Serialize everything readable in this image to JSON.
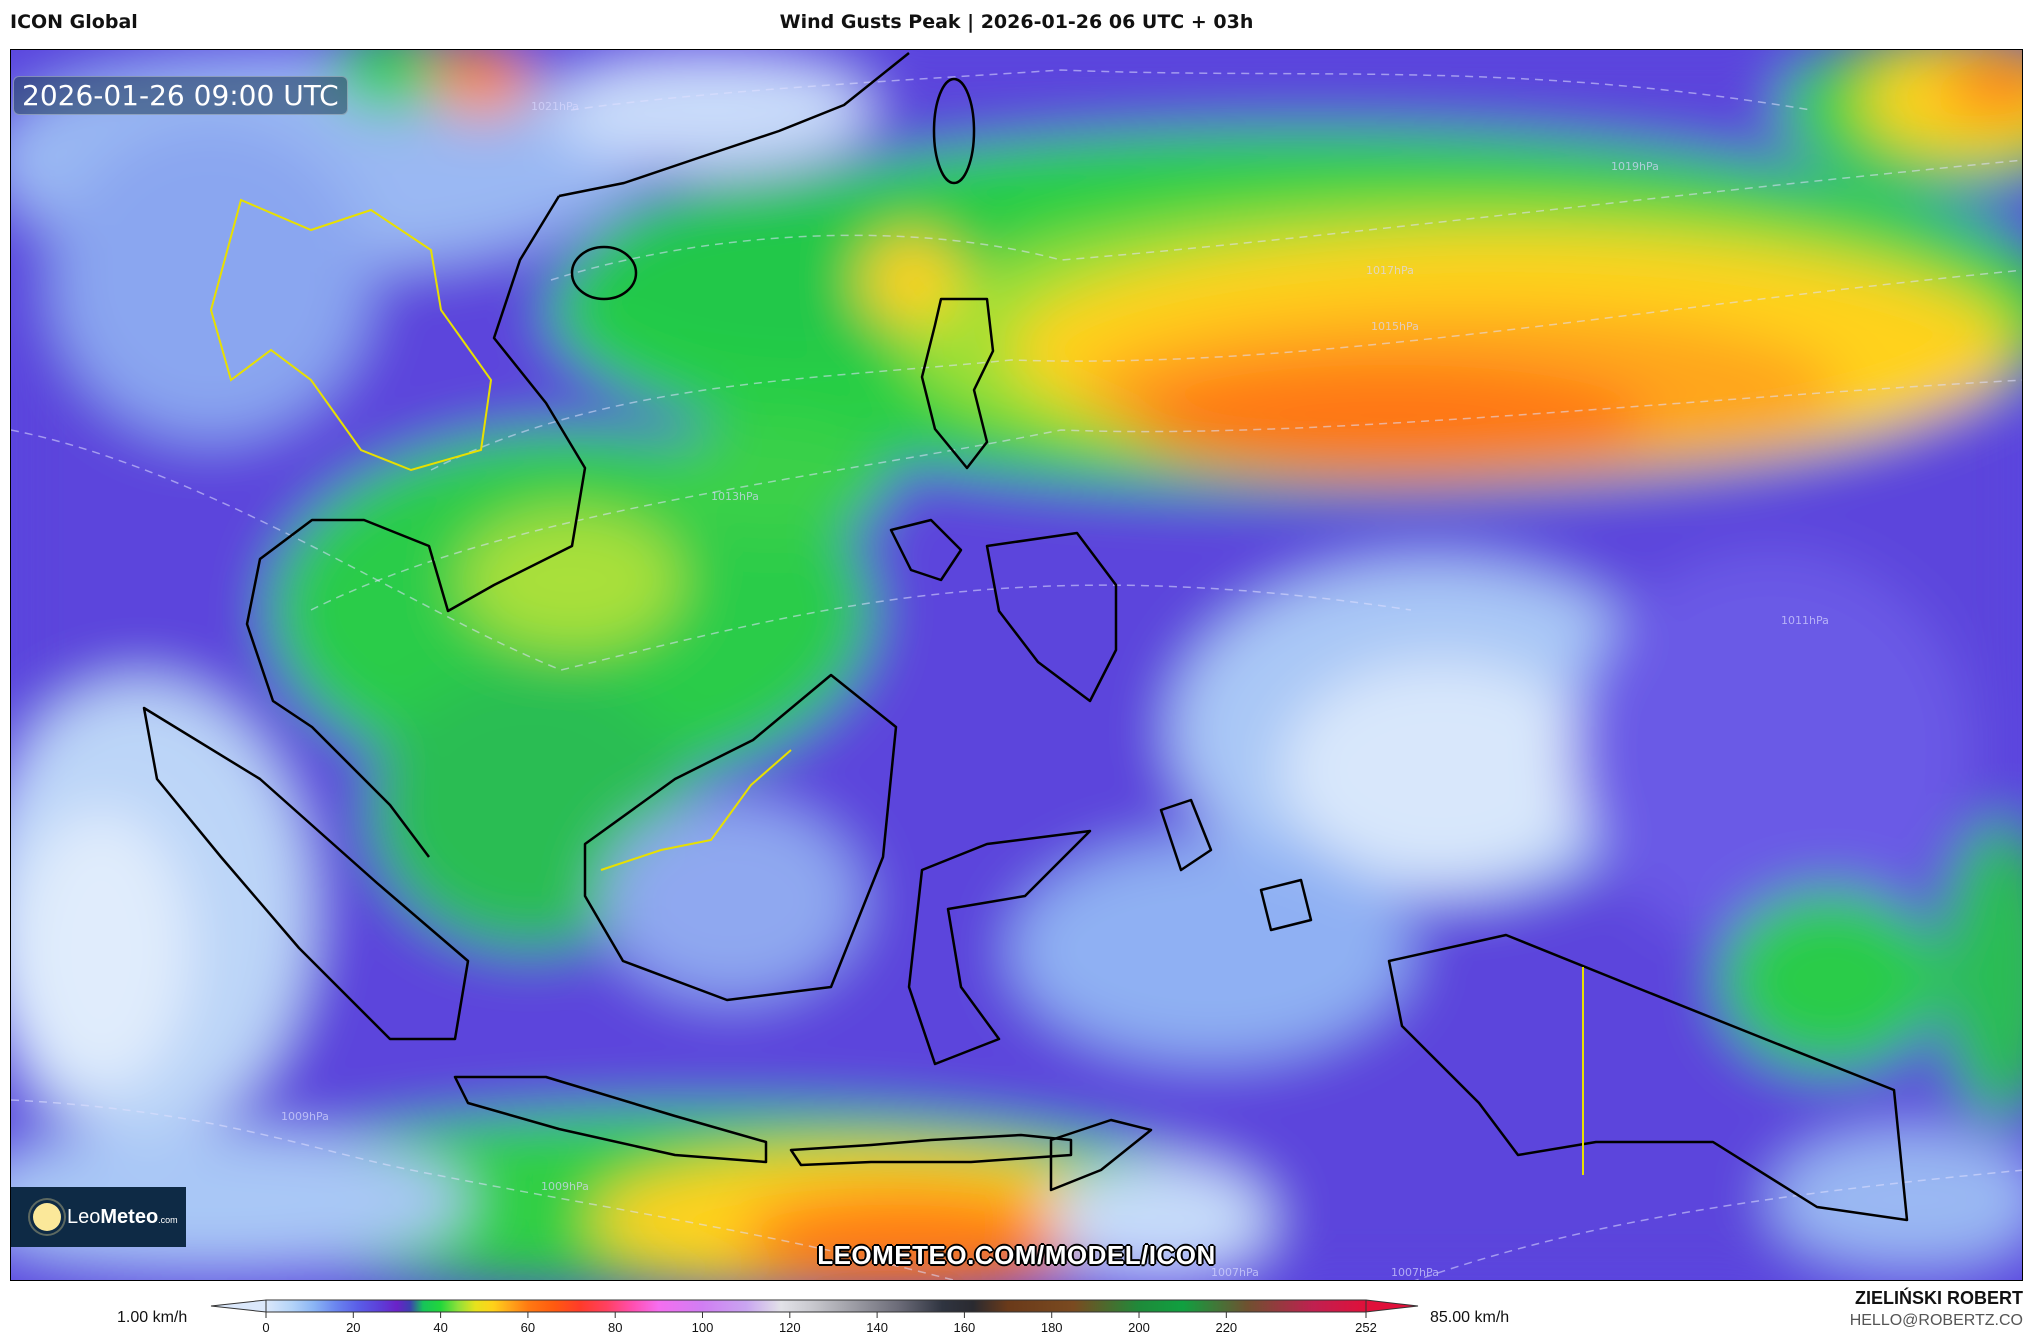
{
  "header": {
    "model": "ICON Global",
    "title": "Wind Gusts Peak | 2026-01-26 06 UTC + 03h"
  },
  "map": {
    "valid_time": "2026-01-26 09:00 UTC",
    "isobar_labels": [
      "1021hPa",
      "1019hPa",
      "1017hPa",
      "1015hPa",
      "1013hPa",
      "1011hPa",
      "1009hPa",
      "1009hPa",
      "1007hPa",
      "1007hPa"
    ],
    "watermark": "LEOMETEO.COM/MODEL/ICON",
    "logo": {
      "light": "Leo",
      "bold": "Meteo",
      "suffix": ".com"
    }
  },
  "colorbar": {
    "min_label": "1.00 km/h",
    "max_label": "85.00 km/h",
    "ticks": [
      "0",
      "20",
      "40",
      "60",
      "80",
      "100",
      "120",
      "140",
      "160",
      "180",
      "200",
      "220",
      "252"
    ],
    "range": [
      0,
      252
    ],
    "stops": [
      [
        0,
        "#dbe8fb"
      ],
      [
        6,
        "#b3d3f8"
      ],
      [
        11,
        "#8ab4f5"
      ],
      [
        16,
        "#6a85ef"
      ],
      [
        21,
        "#5a5ee8"
      ],
      [
        26,
        "#5c3fd8"
      ],
      [
        30,
        "#6a22c8"
      ],
      [
        33,
        "#3d3fb0"
      ],
      [
        36,
        "#16c45a"
      ],
      [
        40,
        "#22d63b"
      ],
      [
        44,
        "#8fe03a"
      ],
      [
        48,
        "#e7e21d"
      ],
      [
        52,
        "#ffd21a"
      ],
      [
        56,
        "#ffa51a"
      ],
      [
        60,
        "#ff7a12"
      ],
      [
        66,
        "#ff5a10"
      ],
      [
        72,
        "#ff3b2a"
      ],
      [
        78,
        "#ff4060"
      ],
      [
        84,
        "#ff4fb0"
      ],
      [
        90,
        "#f56ef0"
      ],
      [
        100,
        "#d07ef3"
      ],
      [
        110,
        "#c9a5f0"
      ],
      [
        118,
        "#e2e2e8"
      ],
      [
        125,
        "#c9c9cf"
      ],
      [
        135,
        "#9b9ba3"
      ],
      [
        145,
        "#6b6b78"
      ],
      [
        155,
        "#2f3440"
      ],
      [
        162,
        "#2a2a30"
      ],
      [
        170,
        "#6a3a1a"
      ],
      [
        185,
        "#7a4a20"
      ],
      [
        200,
        "#1f8a3a"
      ],
      [
        210,
        "#10a040"
      ],
      [
        225,
        "#705030"
      ],
      [
        240,
        "#c02050"
      ],
      [
        252,
        "#e0103a"
      ]
    ]
  },
  "footer": {
    "author": "ZIELIŃSKI ROBERT",
    "email": "HELLO@ROBERTZ.CO"
  }
}
